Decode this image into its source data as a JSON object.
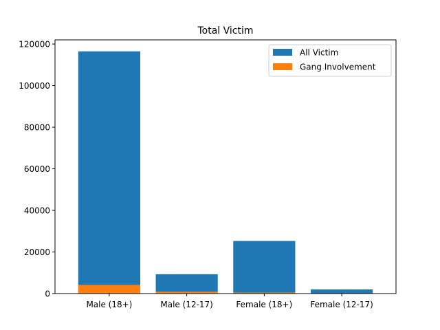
{
  "chart_data": {
    "type": "bar",
    "title": "Total Victim",
    "xlabel": "",
    "ylabel": "",
    "categories": [
      "Male (18+)",
      "Male (12-17)",
      "Female (18+)",
      "Female (12-17)"
    ],
    "series": [
      {
        "name": "All Victim",
        "color": "#1f77b4",
        "values": [
          116500,
          9300,
          25300,
          2000
        ]
      },
      {
        "name": "Gang Involvement",
        "color": "#ff7f0e",
        "values": [
          4200,
          900,
          500,
          100
        ]
      }
    ],
    "ylim": [
      0,
      122000
    ],
    "yticks": [
      0,
      20000,
      40000,
      60000,
      80000,
      100000,
      120000
    ],
    "legend_position": "top-right",
    "grid": false,
    "overlay": true
  }
}
